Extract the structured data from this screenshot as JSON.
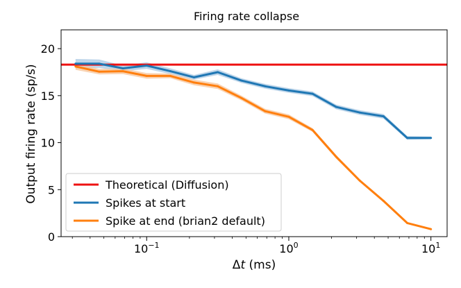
{
  "chart_data": {
    "type": "line",
    "title": "Firing rate collapse",
    "xlabel_prefix": "Δ",
    "xlabel_var": "t",
    "xlabel_suffix": " (ms)",
    "ylabel": "Output firing rate (sp/s)",
    "xscale": "log",
    "xlim": [
      0.025,
      13
    ],
    "ylim": [
      0,
      22
    ],
    "yticks": [
      {
        "value": 0,
        "label": "0"
      },
      {
        "value": 5,
        "label": "5"
      },
      {
        "value": 10,
        "label": "10"
      },
      {
        "value": 15,
        "label": "15"
      },
      {
        "value": 20,
        "label": "20"
      }
    ],
    "xticks": [
      {
        "value": 0.1,
        "base": "10",
        "exp": "−1"
      },
      {
        "value": 1,
        "base": "10",
        "exp": "0"
      },
      {
        "value": 10,
        "base": "10",
        "exp": "1"
      }
    ],
    "theoretical": {
      "name": "Theoretical (Diffusion)",
      "color": "#ee1111",
      "value": 18.3
    },
    "series": [
      {
        "name": "Spikes at start",
        "color": "#1f77b4",
        "band_color": "#a9c8e3",
        "x": [
          0.0316,
          0.0464,
          0.0681,
          0.1,
          0.1468,
          0.2154,
          0.3162,
          0.4642,
          0.6813,
          1.0,
          1.4678,
          2.1544,
          3.1623,
          4.6416,
          6.8129,
          10.0
        ],
        "y": [
          18.4,
          18.4,
          17.9,
          18.2,
          17.6,
          16.95,
          17.5,
          16.6,
          16.0,
          15.55,
          15.2,
          13.8,
          13.2,
          12.8,
          10.5,
          10.5
        ],
        "band": [
          0.5,
          0.45,
          0.3,
          0.35,
          0.3,
          0.25,
          0.3,
          0.25,
          0.25,
          0.25,
          0.25,
          0.25,
          0.25,
          0.25,
          0.2,
          0.15
        ]
      },
      {
        "name": "Spike at end (brian2 default)",
        "color": "#ff7f0e",
        "band_color": "#f7c49a",
        "x": [
          0.0316,
          0.0464,
          0.0681,
          0.1,
          0.1468,
          0.2154,
          0.3162,
          0.4642,
          0.6813,
          1.0,
          1.4678,
          2.1544,
          3.1623,
          4.6416,
          6.8129,
          10.0
        ],
        "y": [
          18.1,
          17.55,
          17.6,
          17.1,
          17.1,
          16.4,
          16.0,
          14.75,
          13.35,
          12.75,
          11.35,
          8.5,
          5.95,
          3.8,
          1.45,
          0.8
        ],
        "band": [
          0.35,
          0.3,
          0.3,
          0.3,
          0.25,
          0.3,
          0.3,
          0.25,
          0.25,
          0.25,
          0.2,
          0.2,
          0.15,
          0.15,
          0.1,
          0.1
        ]
      }
    ],
    "legend_position": "lower-left"
  }
}
